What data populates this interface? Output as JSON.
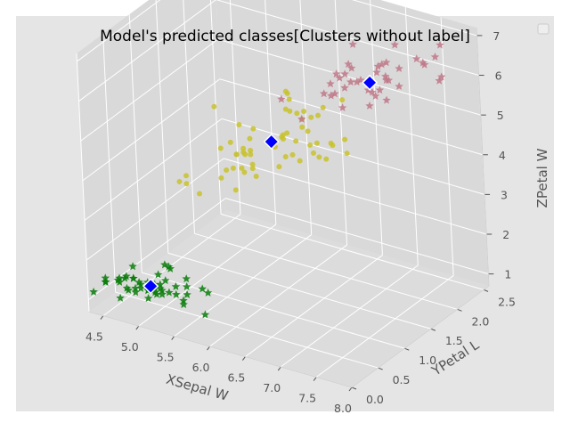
{
  "chart_data": {
    "type": "scatter",
    "projection": "3d",
    "title": "Model's predicted classes[Clusters without label]",
    "xlabel": "XSepal W",
    "ylabel": "YPetal L",
    "zlabel": "ZPetal W",
    "xlim": [
      4.3,
      8.0
    ],
    "ylim": [
      0.0,
      2.6
    ],
    "zlim": [
      0.7,
      7.2
    ],
    "x_ticks": [
      "4.5",
      "5.0",
      "5.5",
      "6.0",
      "6.5",
      "7.0",
      "7.5",
      "8.0"
    ],
    "y_ticks": [
      "0.0",
      "0.5",
      "1.0",
      "1.5",
      "2.0",
      "2.5"
    ],
    "z_ticks": [
      "1",
      "2",
      "3",
      "4",
      "5",
      "6",
      "7"
    ],
    "grid": true,
    "style": "ggplot",
    "legend": {
      "placement": "top-right",
      "entries": []
    },
    "series": [
      {
        "color": "#0a7d0a",
        "marker": "star",
        "points": [
          [
            5.1,
            0.2,
            1.4
          ],
          [
            4.9,
            0.2,
            1.4
          ],
          [
            4.7,
            0.2,
            1.3
          ],
          [
            4.6,
            0.2,
            1.5
          ],
          [
            5.0,
            0.2,
            1.4
          ],
          [
            5.4,
            0.4,
            1.7
          ],
          [
            4.6,
            0.3,
            1.4
          ],
          [
            5.0,
            0.2,
            1.5
          ],
          [
            4.4,
            0.2,
            1.4
          ],
          [
            4.9,
            0.1,
            1.5
          ],
          [
            5.4,
            0.2,
            1.5
          ],
          [
            4.8,
            0.2,
            1.6
          ],
          [
            4.8,
            0.1,
            1.4
          ],
          [
            4.3,
            0.1,
            1.1
          ],
          [
            5.8,
            0.2,
            1.2
          ],
          [
            5.7,
            0.4,
            1.5
          ],
          [
            5.4,
            0.4,
            1.3
          ],
          [
            5.1,
            0.3,
            1.4
          ],
          [
            5.7,
            0.3,
            1.7
          ],
          [
            5.1,
            0.3,
            1.5
          ],
          [
            5.4,
            0.2,
            1.7
          ],
          [
            5.1,
            0.4,
            1.5
          ],
          [
            4.6,
            0.2,
            1.0
          ],
          [
            5.1,
            0.5,
            1.7
          ],
          [
            4.8,
            0.2,
            1.9
          ],
          [
            5.0,
            0.2,
            1.6
          ],
          [
            5.0,
            0.4,
            1.6
          ],
          [
            5.2,
            0.2,
            1.5
          ],
          [
            5.2,
            0.2,
            1.4
          ],
          [
            4.7,
            0.2,
            1.6
          ],
          [
            4.8,
            0.2,
            1.6
          ],
          [
            5.4,
            0.4,
            1.5
          ],
          [
            5.2,
            0.1,
            1.5
          ],
          [
            5.5,
            0.2,
            1.4
          ],
          [
            4.9,
            0.2,
            1.5
          ],
          [
            5.0,
            0.2,
            1.2
          ],
          [
            5.5,
            0.2,
            1.3
          ],
          [
            4.9,
            0.1,
            1.4
          ],
          [
            4.4,
            0.2,
            1.3
          ],
          [
            5.1,
            0.2,
            1.5
          ],
          [
            5.0,
            0.3,
            1.3
          ],
          [
            4.5,
            0.3,
            1.3
          ],
          [
            4.4,
            0.2,
            1.3
          ],
          [
            5.0,
            0.6,
            1.6
          ],
          [
            5.1,
            0.4,
            1.9
          ],
          [
            4.8,
            0.3,
            1.4
          ],
          [
            5.1,
            0.2,
            1.6
          ],
          [
            4.6,
            0.2,
            1.4
          ],
          [
            5.3,
            0.2,
            1.5
          ],
          [
            5.0,
            0.2,
            1.4
          ]
        ]
      },
      {
        "color": "#c8c22a",
        "marker": "circle",
        "points": [
          [
            7.0,
            1.4,
            4.7
          ],
          [
            6.4,
            1.5,
            4.5
          ],
          [
            6.9,
            1.5,
            4.9
          ],
          [
            5.5,
            1.3,
            4.0
          ],
          [
            6.5,
            1.5,
            4.6
          ],
          [
            5.7,
            1.3,
            4.5
          ],
          [
            6.3,
            1.6,
            4.7
          ],
          [
            4.9,
            1.0,
            3.3
          ],
          [
            6.6,
            1.3,
            4.6
          ],
          [
            5.2,
            1.4,
            3.9
          ],
          [
            5.0,
            1.0,
            3.5
          ],
          [
            5.9,
            1.5,
            4.2
          ],
          [
            6.0,
            1.0,
            4.0
          ],
          [
            6.1,
            1.4,
            4.7
          ],
          [
            5.6,
            1.3,
            3.6
          ],
          [
            6.7,
            1.4,
            4.4
          ],
          [
            5.6,
            1.5,
            4.5
          ],
          [
            5.8,
            1.0,
            4.1
          ],
          [
            6.2,
            1.5,
            4.5
          ],
          [
            5.6,
            1.1,
            3.9
          ],
          [
            5.9,
            1.8,
            4.8
          ],
          [
            6.1,
            1.3,
            4.0
          ],
          [
            6.3,
            1.5,
            4.9
          ],
          [
            6.1,
            1.2,
            4.7
          ],
          [
            6.4,
            1.3,
            4.3
          ],
          [
            6.6,
            1.4,
            4.4
          ],
          [
            6.8,
            1.4,
            4.8
          ],
          [
            6.0,
            1.5,
            4.5
          ],
          [
            5.7,
            1.0,
            3.5
          ],
          [
            5.5,
            1.1,
            3.8
          ],
          [
            5.5,
            1.0,
            3.7
          ],
          [
            5.8,
            1.2,
            3.9
          ],
          [
            6.0,
            1.6,
            5.1
          ],
          [
            5.4,
            1.5,
            4.5
          ],
          [
            6.0,
            1.6,
            4.5
          ],
          [
            6.7,
            1.5,
            4.7
          ],
          [
            6.3,
            1.3,
            4.4
          ],
          [
            5.6,
            1.3,
            4.1
          ],
          [
            5.5,
            1.3,
            4.0
          ],
          [
            5.5,
            1.2,
            4.4
          ],
          [
            6.1,
            1.4,
            4.6
          ],
          [
            5.8,
            1.2,
            4.0
          ],
          [
            5.0,
            1.0,
            3.3
          ],
          [
            5.6,
            1.3,
            4.2
          ],
          [
            5.7,
            1.2,
            4.2
          ],
          [
            5.7,
            1.3,
            4.2
          ],
          [
            6.2,
            1.3,
            4.3
          ],
          [
            5.1,
            1.1,
            3.0
          ],
          [
            5.7,
            1.3,
            4.1
          ],
          [
            5.8,
            1.9,
            5.1
          ],
          [
            4.9,
            1.7,
            4.5
          ],
          [
            5.7,
            2.0,
            5.0
          ],
          [
            6.3,
            1.8,
            4.9
          ],
          [
            6.0,
            1.8,
            4.8
          ],
          [
            6.1,
            1.8,
            4.9
          ],
          [
            6.3,
            1.5,
            5.1
          ],
          [
            6.2,
            1.8,
            4.8
          ],
          [
            6.3,
            1.9,
            5.0
          ],
          [
            6.5,
            2.0,
            5.2
          ],
          [
            5.9,
            1.8,
            5.1
          ]
        ]
      },
      {
        "color": "#c07888",
        "marker": "star",
        "points": [
          [
            6.3,
            2.5,
            6.0
          ],
          [
            7.1,
            2.1,
            5.9
          ],
          [
            6.5,
            1.8,
            5.8
          ],
          [
            7.6,
            2.1,
            6.6
          ],
          [
            7.3,
            1.8,
            6.3
          ],
          [
            6.7,
            1.8,
            5.8
          ],
          [
            7.2,
            2.5,
            6.1
          ],
          [
            6.4,
            2.0,
            5.3
          ],
          [
            6.8,
            2.1,
            5.5
          ],
          [
            6.5,
            2.2,
            5.8
          ],
          [
            6.4,
            2.3,
            5.3
          ],
          [
            6.5,
            1.8,
            5.5
          ],
          [
            7.7,
            2.2,
            6.7
          ],
          [
            7.7,
            2.3,
            6.9
          ],
          [
            6.9,
            2.3,
            5.7
          ],
          [
            7.7,
            2.0,
            6.7
          ],
          [
            6.7,
            2.1,
            5.7
          ],
          [
            7.2,
            1.8,
            6.0
          ],
          [
            6.4,
            2.1,
            5.6
          ],
          [
            7.2,
            1.6,
            5.8
          ],
          [
            7.4,
            1.9,
            6.1
          ],
          [
            7.9,
            2.0,
            6.4
          ],
          [
            6.4,
            2.2,
            5.6
          ],
          [
            6.3,
            1.5,
            5.1
          ],
          [
            6.1,
            1.4,
            5.6
          ],
          [
            7.7,
            2.3,
            6.1
          ],
          [
            6.3,
            2.4,
            5.6
          ],
          [
            6.4,
            1.8,
            5.5
          ],
          [
            6.9,
            2.1,
            5.4
          ],
          [
            6.7,
            2.4,
            5.6
          ],
          [
            6.9,
            2.3,
            5.1
          ],
          [
            6.8,
            2.3,
            5.9
          ],
          [
            6.7,
            2.5,
            5.7
          ],
          [
            6.7,
            2.3,
            5.2
          ],
          [
            6.5,
            2.0,
            5.0
          ],
          [
            6.2,
            2.3,
            5.4
          ],
          [
            6.8,
            1.9,
            5.9
          ],
          [
            7.1,
            2.3,
            6.0
          ],
          [
            7.0,
            2.2,
            6.2
          ],
          [
            6.9,
            2.5,
            6.3
          ]
        ]
      }
    ],
    "centroids": {
      "color": "#0000ff",
      "marker": "diamond",
      "points": [
        [
          5.006,
          0.246,
          1.462
        ],
        [
          5.902,
          1.434,
          4.394
        ],
        [
          6.85,
          2.071,
          5.742
        ]
      ]
    }
  }
}
